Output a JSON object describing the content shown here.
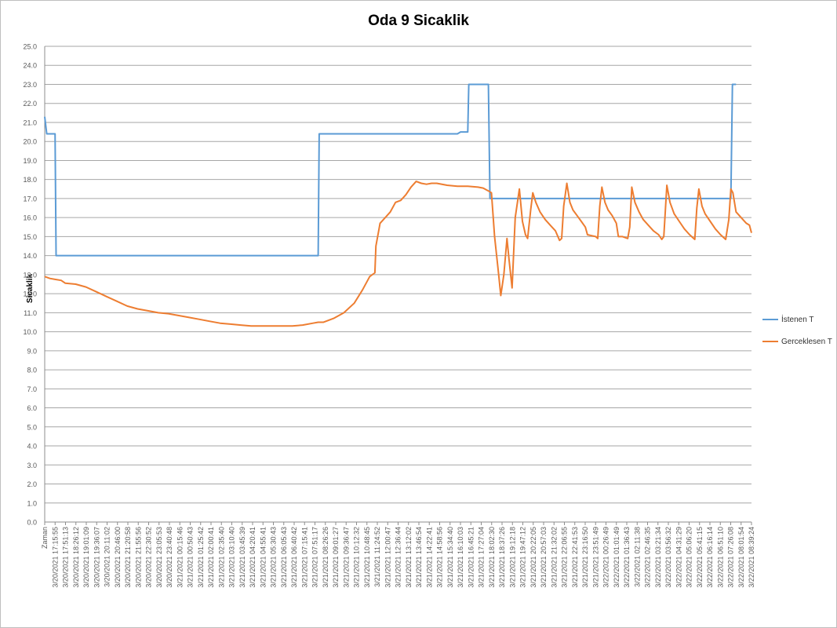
{
  "chart_data": {
    "type": "line",
    "title": "Oda 9 Sicaklik",
    "ylabel": "Sicaklik",
    "xlabel": "",
    "ylim": [
      0,
      25
    ],
    "yticks": [
      "0.0",
      "1.0",
      "2.0",
      "3.0",
      "4.0",
      "5.0",
      "6.0",
      "7.0",
      "8.0",
      "9.0",
      "10.0",
      "11.0",
      "12.0",
      "13.0",
      "14.0",
      "15.0",
      "16.0",
      "17.0",
      "18.0",
      "19.0",
      "20.0",
      "21.0",
      "22.0",
      "23.0",
      "24.0",
      "25.0"
    ],
    "grid": true,
    "legend_position": "right",
    "categories": [
      "Zaman",
      "3/20/2021 17:15:55",
      "3/20/2021 17:51:13",
      "3/20/2021 18:26:12",
      "3/20/2021 19:01:09",
      "3/20/2021 19:36:07",
      "3/20/2021 20:11:02",
      "3/20/2021 20:46:00",
      "3/20/2021 21:20:58",
      "3/20/2021 21:55:56",
      "3/20/2021 22:30:52",
      "3/20/2021 23:05:53",
      "3/20/2021 23:40:48",
      "3/21/2021 00:15:46",
      "3/21/2021 00:50:43",
      "3/21/2021 01:25:42",
      "3/21/2021 02:00:41",
      "3/21/2021 02:35:40",
      "3/21/2021 03:10:40",
      "3/21/2021 03:45:39",
      "3/21/2021 04:20:41",
      "3/21/2021 04:55:41",
      "3/21/2021 05:30:43",
      "3/21/2021 06:05:43",
      "3/21/2021 06:40:42",
      "3/21/2021 07:15:41",
      "3/21/2021 07:51:17",
      "3/21/2021 08:26:26",
      "3/21/2021 09:01:27",
      "3/21/2021 09:36:47",
      "3/21/2021 10:12:32",
      "3/21/2021 10:48:45",
      "3/21/2021 11:24:52",
      "3/21/2021 12:00:47",
      "3/21/2021 12:36:44",
      "3/21/2021 13:12:02",
      "3/21/2021 13:46:54",
      "3/21/2021 14:22:41",
      "3/21/2021 14:58:56",
      "3/21/2021 15:34:40",
      "3/21/2021 16:10:03",
      "3/21/2021 16:45:21",
      "3/21/2021 17:27:04",
      "3/21/2021 18:02:30",
      "3/21/2021 18:37:26",
      "3/21/2021 19:12:18",
      "3/21/2021 19:47:12",
      "3/21/2021 20:22:05",
      "3/21/2021 20:57:03",
      "3/21/2021 21:32:02",
      "3/21/2021 22:06:55",
      "3/21/2021 22:41:53",
      "3/21/2021 23:16:50",
      "3/21/2021 23:51:49",
      "3/22/2021 00:26:49",
      "3/22/2021 01:01:49",
      "3/22/2021 01:36:43",
      "3/22/2021 02:11:38",
      "3/22/2021 02:46:35",
      "3/22/2021 03:21:34",
      "3/22/2021 03:56:32",
      "3/22/2021 04:31:29",
      "3/22/2021 05:06:20",
      "3/22/2021 05:41:15",
      "3/22/2021 06:16:14",
      "3/22/2021 06:51:10",
      "3/22/2021 07:26:08",
      "3/22/2021 08:01:54",
      "3/22/2021 08:39:24"
    ],
    "series": [
      {
        "name": "İstenen T",
        "color": "#5b9bd5",
        "points": [
          [
            0,
            21.3
          ],
          [
            0.2,
            20.4
          ],
          [
            1,
            20.4
          ],
          [
            1.1,
            14.0
          ],
          [
            26.5,
            14.0
          ],
          [
            26.6,
            20.4
          ],
          [
            40,
            20.4
          ],
          [
            40.3,
            20.5
          ],
          [
            41,
            20.5
          ],
          [
            41.1,
            23.0
          ],
          [
            43,
            23.0
          ],
          [
            43.15,
            17.0
          ],
          [
            66.5,
            17.0
          ],
          [
            66.65,
            23.0
          ],
          [
            67,
            23.0
          ]
        ]
      },
      {
        "name": "Gerceklesen T",
        "color": "#ed7d31",
        "points": [
          [
            0,
            12.9
          ],
          [
            0.5,
            12.8
          ],
          [
            1,
            12.75
          ],
          [
            1.6,
            12.7
          ],
          [
            2,
            12.55
          ],
          [
            3,
            12.5
          ],
          [
            4,
            12.35
          ],
          [
            5,
            12.1
          ],
          [
            6,
            11.85
          ],
          [
            7,
            11.6
          ],
          [
            8,
            11.35
          ],
          [
            9,
            11.2
          ],
          [
            10,
            11.1
          ],
          [
            11,
            11.0
          ],
          [
            12,
            10.95
          ],
          [
            13,
            10.85
          ],
          [
            14,
            10.75
          ],
          [
            15,
            10.65
          ],
          [
            16,
            10.55
          ],
          [
            17,
            10.45
          ],
          [
            18,
            10.4
          ],
          [
            19,
            10.35
          ],
          [
            20,
            10.3
          ],
          [
            21,
            10.3
          ],
          [
            22,
            10.3
          ],
          [
            23,
            10.3
          ],
          [
            24,
            10.3
          ],
          [
            25,
            10.35
          ],
          [
            26,
            10.45
          ],
          [
            26.5,
            10.5
          ],
          [
            27,
            10.5
          ],
          [
            28,
            10.7
          ],
          [
            29,
            11.0
          ],
          [
            30,
            11.5
          ],
          [
            30.8,
            12.2
          ],
          [
            31.5,
            12.9
          ],
          [
            32,
            13.1
          ],
          [
            32.1,
            14.5
          ],
          [
            32.5,
            15.7
          ],
          [
            33,
            16.0
          ],
          [
            33.5,
            16.3
          ],
          [
            34,
            16.8
          ],
          [
            34.5,
            16.9
          ],
          [
            35,
            17.2
          ],
          [
            35.5,
            17.6
          ],
          [
            36,
            17.9
          ],
          [
            36.5,
            17.8
          ],
          [
            37,
            17.75
          ],
          [
            37.5,
            17.8
          ],
          [
            38,
            17.8
          ],
          [
            39,
            17.7
          ],
          [
            40,
            17.65
          ],
          [
            41,
            17.65
          ],
          [
            42,
            17.6
          ],
          [
            42.5,
            17.55
          ],
          [
            43,
            17.4
          ],
          [
            43.3,
            17.3
          ],
          [
            43.6,
            15.0
          ],
          [
            44,
            13.0
          ],
          [
            44.2,
            11.9
          ],
          [
            44.5,
            13.0
          ],
          [
            44.8,
            14.9
          ],
          [
            45,
            13.8
          ],
          [
            45.3,
            12.3
          ],
          [
            45.6,
            16.0
          ],
          [
            46,
            17.5
          ],
          [
            46.3,
            15.8
          ],
          [
            46.6,
            15.1
          ],
          [
            46.8,
            14.9
          ],
          [
            47.1,
            16.4
          ],
          [
            47.3,
            17.3
          ],
          [
            47.6,
            16.8
          ],
          [
            48,
            16.3
          ],
          [
            48.5,
            15.9
          ],
          [
            49,
            15.6
          ],
          [
            49.5,
            15.3
          ],
          [
            49.9,
            14.8
          ],
          [
            50.1,
            14.9
          ],
          [
            50.3,
            16.6
          ],
          [
            50.6,
            17.8
          ],
          [
            50.9,
            16.8
          ],
          [
            51.2,
            16.4
          ],
          [
            51.6,
            16.1
          ],
          [
            52,
            15.8
          ],
          [
            52.4,
            15.5
          ],
          [
            52.6,
            15.1
          ],
          [
            53,
            15.05
          ],
          [
            53.4,
            15.0
          ],
          [
            53.6,
            14.9
          ],
          [
            53.8,
            16.6
          ],
          [
            54,
            17.6
          ],
          [
            54.3,
            16.8
          ],
          [
            54.6,
            16.4
          ],
          [
            55,
            16.1
          ],
          [
            55.4,
            15.7
          ],
          [
            55.6,
            15.0
          ],
          [
            56,
            15.0
          ],
          [
            56.5,
            14.9
          ],
          [
            56.7,
            15.5
          ],
          [
            56.9,
            17.6
          ],
          [
            57.2,
            16.8
          ],
          [
            57.6,
            16.3
          ],
          [
            58,
            15.9
          ],
          [
            58.5,
            15.6
          ],
          [
            59,
            15.3
          ],
          [
            59.5,
            15.1
          ],
          [
            59.8,
            14.85
          ],
          [
            60,
            15.0
          ],
          [
            60.3,
            17.7
          ],
          [
            60.6,
            16.8
          ],
          [
            61,
            16.2
          ],
          [
            61.5,
            15.8
          ],
          [
            62,
            15.4
          ],
          [
            62.5,
            15.1
          ],
          [
            63,
            14.85
          ],
          [
            63.2,
            16.5
          ],
          [
            63.4,
            17.5
          ],
          [
            63.7,
            16.6
          ],
          [
            64,
            16.2
          ],
          [
            64.5,
            15.8
          ],
          [
            65,
            15.4
          ],
          [
            65.5,
            15.1
          ],
          [
            66,
            14.85
          ],
          [
            66.3,
            15.9
          ],
          [
            66.5,
            17.5
          ],
          [
            66.7,
            17.3
          ],
          [
            67,
            16.3
          ],
          [
            67.5,
            16.0
          ],
          [
            68,
            15.7
          ],
          [
            68.3,
            15.6
          ],
          [
            68.5,
            15.2
          ]
        ]
      }
    ]
  }
}
